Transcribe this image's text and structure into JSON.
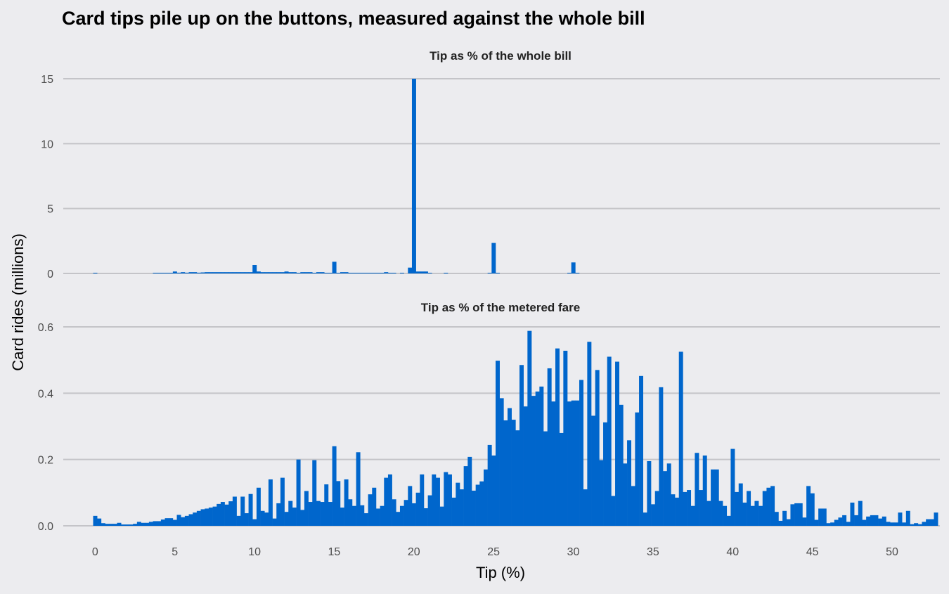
{
  "title": "Card tips pile up on the buttons, measured against the whole bill",
  "colors": {
    "background": "#ececef",
    "bar": "#0066cc",
    "grid": "#c4c4c8"
  },
  "chart_data": [
    {
      "type": "bar",
      "title": "Tip as % of the whole bill",
      "xlabel": "Tip (%)",
      "ylabel": "Card rides (millions)",
      "bin_width": 0.25,
      "xlim": [
        -2,
        53
      ],
      "ylim": [
        0,
        15
      ],
      "yticks": [
        "0",
        "5",
        "10",
        "15"
      ],
      "xticks": [
        "0",
        "5",
        "10",
        "15",
        "20",
        "25",
        "30",
        "35",
        "40",
        "45",
        "50"
      ],
      "grid": "horizontal",
      "bars": [
        [
          0,
          0.05
        ],
        [
          3.75,
          0.03
        ],
        [
          4.0,
          0.03
        ],
        [
          4.25,
          0.03
        ],
        [
          4.5,
          0.03
        ],
        [
          4.75,
          0.05
        ],
        [
          5.0,
          0.15
        ],
        [
          5.25,
          0.06
        ],
        [
          5.5,
          0.1
        ],
        [
          5.75,
          0.06
        ],
        [
          6.0,
          0.1
        ],
        [
          6.25,
          0.1
        ],
        [
          6.5,
          0.06
        ],
        [
          6.75,
          0.08
        ],
        [
          7.0,
          0.1
        ],
        [
          7.25,
          0.1
        ],
        [
          7.5,
          0.1
        ],
        [
          7.75,
          0.1
        ],
        [
          8.0,
          0.1
        ],
        [
          8.25,
          0.1
        ],
        [
          8.5,
          0.1
        ],
        [
          8.75,
          0.1
        ],
        [
          9.0,
          0.1
        ],
        [
          9.25,
          0.1
        ],
        [
          9.5,
          0.1
        ],
        [
          9.75,
          0.1
        ],
        [
          10.0,
          0.65
        ],
        [
          10.25,
          0.15
        ],
        [
          10.5,
          0.1
        ],
        [
          10.75,
          0.1
        ],
        [
          11.0,
          0.1
        ],
        [
          11.25,
          0.1
        ],
        [
          11.5,
          0.1
        ],
        [
          11.75,
          0.1
        ],
        [
          12.0,
          0.15
        ],
        [
          12.25,
          0.1
        ],
        [
          12.5,
          0.1
        ],
        [
          12.75,
          0.05
        ],
        [
          13.0,
          0.1
        ],
        [
          13.25,
          0.1
        ],
        [
          13.5,
          0.1
        ],
        [
          13.75,
          0.05
        ],
        [
          14.0,
          0.1
        ],
        [
          14.25,
          0.1
        ],
        [
          14.5,
          0.05
        ],
        [
          14.75,
          0.05
        ],
        [
          15.0,
          0.9
        ],
        [
          15.25,
          0.05
        ],
        [
          15.5,
          0.1
        ],
        [
          15.75,
          0.1
        ],
        [
          16.0,
          0.05
        ],
        [
          16.25,
          0.05
        ],
        [
          16.5,
          0.05
        ],
        [
          16.75,
          0.05
        ],
        [
          17.0,
          0.05
        ],
        [
          17.25,
          0.05
        ],
        [
          17.5,
          0.05
        ],
        [
          17.75,
          0.05
        ],
        [
          18.0,
          0.05
        ],
        [
          18.25,
          0.1
        ],
        [
          18.5,
          0.05
        ],
        [
          18.75,
          0.05
        ],
        [
          19.25,
          0.05
        ],
        [
          19.75,
          0.45
        ],
        [
          20.0,
          15.0
        ],
        [
          20.25,
          0.15
        ],
        [
          20.5,
          0.15
        ],
        [
          20.75,
          0.15
        ],
        [
          21.0,
          0.05
        ],
        [
          22.0,
          0.05
        ],
        [
          24.75,
          0.05
        ],
        [
          25.0,
          2.35
        ],
        [
          25.25,
          0.05
        ],
        [
          29.75,
          0.05
        ],
        [
          30.0,
          0.85
        ],
        [
          30.25,
          0.05
        ]
      ]
    },
    {
      "type": "bar",
      "title": "Tip as % of the metered fare",
      "xlabel": "Tip (%)",
      "ylabel": "Card rides (millions)",
      "bin_width": 0.25,
      "x_start": 0,
      "xlim": [
        -2,
        53
      ],
      "ylim": [
        0,
        0.6
      ],
      "yticks": [
        "0.0",
        "0.2",
        "0.4",
        "0.6"
      ],
      "xticks": [
        "0",
        "5",
        "10",
        "15",
        "20",
        "25",
        "30",
        "35",
        "40",
        "45",
        "50"
      ],
      "grid": "horizontal",
      "values": [
        0.03,
        0.022,
        0.008,
        0.006,
        0.006,
        0.006,
        0.009,
        0.004,
        0.004,
        0.004,
        0.006,
        0.012,
        0.009,
        0.009,
        0.012,
        0.014,
        0.014,
        0.019,
        0.023,
        0.023,
        0.018,
        0.033,
        0.026,
        0.03,
        0.035,
        0.04,
        0.045,
        0.05,
        0.052,
        0.055,
        0.058,
        0.066,
        0.072,
        0.064,
        0.074,
        0.088,
        0.03,
        0.088,
        0.038,
        0.096,
        0.02,
        0.115,
        0.045,
        0.04,
        0.14,
        0.022,
        0.068,
        0.145,
        0.042,
        0.075,
        0.055,
        0.2,
        0.048,
        0.105,
        0.072,
        0.198,
        0.075,
        0.072,
        0.125,
        0.072,
        0.24,
        0.135,
        0.055,
        0.14,
        0.08,
        0.06,
        0.222,
        0.062,
        0.038,
        0.095,
        0.115,
        0.052,
        0.06,
        0.145,
        0.155,
        0.08,
        0.042,
        0.06,
        0.078,
        0.12,
        0.068,
        0.1,
        0.155,
        0.053,
        0.092,
        0.155,
        0.145,
        0.058,
        0.162,
        0.155,
        0.085,
        0.13,
        0.11,
        0.18,
        0.208,
        0.106,
        0.124,
        0.134,
        0.17,
        0.244,
        0.212,
        0.498,
        0.385,
        0.318,
        0.355,
        0.32,
        0.288,
        0.485,
        0.36,
        0.588,
        0.392,
        0.405,
        0.42,
        0.285,
        0.475,
        0.375,
        0.535,
        0.28,
        0.528,
        0.375,
        0.378,
        0.378,
        0.44,
        0.11,
        0.555,
        0.332,
        0.47,
        0.198,
        0.312,
        0.51,
        0.09,
        0.495,
        0.365,
        0.188,
        0.258,
        0.12,
        0.342,
        0.452,
        0.04,
        0.195,
        0.065,
        0.105,
        0.418,
        0.165,
        0.188,
        0.095,
        0.085,
        0.525,
        0.102,
        0.108,
        0.06,
        0.22,
        0.108,
        0.212,
        0.075,
        0.17,
        0.17,
        0.075,
        0.06,
        0.03,
        0.232,
        0.102,
        0.128,
        0.07,
        0.105,
        0.06,
        0.075,
        0.06,
        0.105,
        0.115,
        0.12,
        0.042,
        0.015,
        0.045,
        0.02,
        0.065,
        0.068,
        0.068,
        0.025,
        0.12,
        0.098,
        0.018,
        0.052,
        0.052,
        0.008,
        0.01,
        0.018,
        0.025,
        0.032,
        0.012,
        0.07,
        0.032,
        0.075,
        0.018,
        0.028,
        0.032,
        0.032,
        0.022,
        0.028,
        0.012,
        0.01,
        0.01,
        0.04,
        0.01,
        0.045,
        0.005,
        0.008,
        0.005,
        0.012,
        0.02,
        0.02,
        0.04
      ]
    }
  ]
}
